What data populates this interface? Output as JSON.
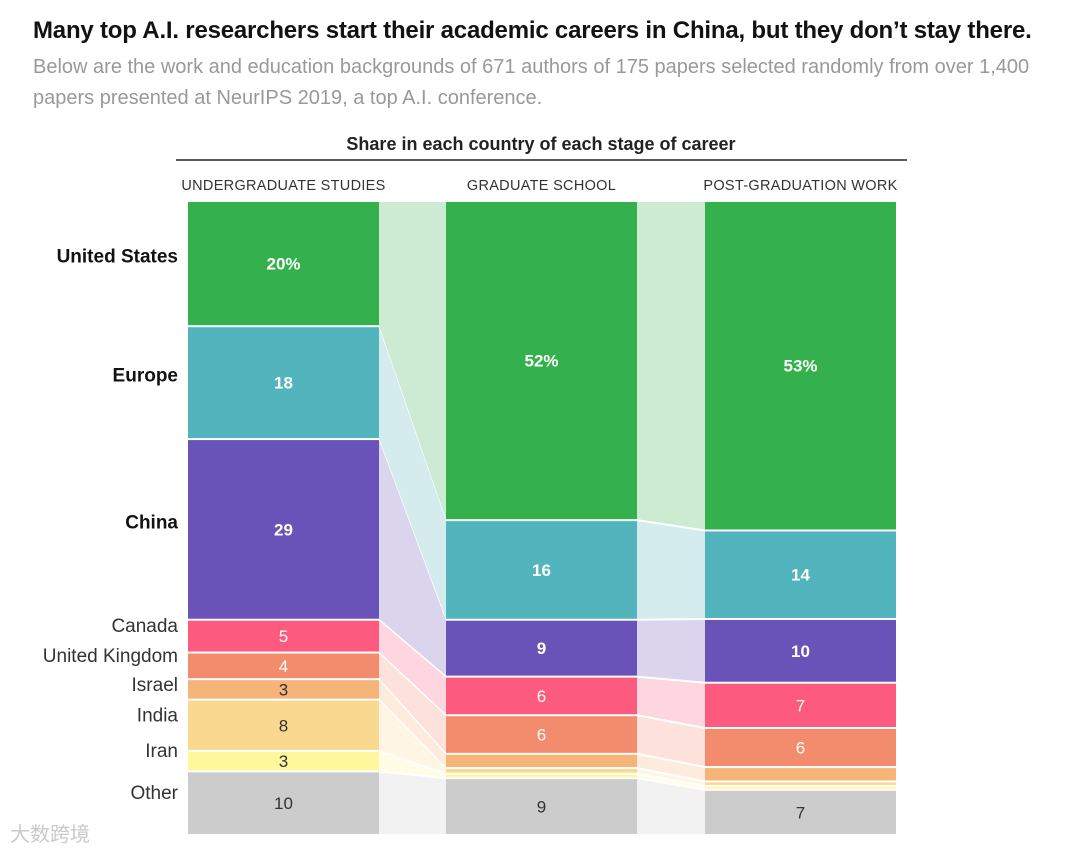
{
  "title": "Many top A.I. researchers start their academic careers in China, but they don’t stay there.",
  "subtitle": "Below are the work and education backgrounds of 671 authors of 175 papers selected randomly from over 1,400 papers presented at NeurIPS 2019, a top A.I. conference.",
  "watermark": "大数跨境",
  "chart_data": {
    "type": "stacked-bar-flow",
    "title": "Share in each country of each stage of career",
    "unit": "%",
    "stages": [
      "UNDERGRADUATE STUDIES",
      "GRADUATE SCHOOL",
      "POST-GRADUATION WORK"
    ],
    "categories": [
      {
        "name": "United States",
        "emphasis": true,
        "color": "#34b04d",
        "text_color": "#ffffff",
        "values": [
          20,
          52,
          53
        ],
        "labels": [
          "20%",
          "52%",
          "53%"
        ]
      },
      {
        "name": "Europe",
        "emphasis": true,
        "color": "#52b4bd",
        "text_color": "#ffffff",
        "values": [
          18,
          16,
          14
        ],
        "labels": [
          "18",
          "16",
          "14"
        ]
      },
      {
        "name": "China",
        "emphasis": true,
        "color": "#6a53b8",
        "text_color": "#ffffff",
        "values": [
          29,
          9,
          10
        ],
        "labels": [
          "29",
          "9",
          "10"
        ]
      },
      {
        "name": "Canada",
        "emphasis": false,
        "color": "#fd5a80",
        "text_color": "#ffffff",
        "values": [
          5,
          6,
          7
        ],
        "labels": [
          "5",
          "6",
          "7"
        ]
      },
      {
        "name": "United Kingdom",
        "emphasis": false,
        "color": "#f28c6c",
        "text_color": "#ffffff",
        "values": [
          4,
          6,
          6
        ],
        "labels": [
          "4",
          "6",
          "6"
        ]
      },
      {
        "name": "Israel",
        "emphasis": false,
        "color": "#f6b479",
        "text_color": "#333333",
        "values": [
          3,
          2,
          2
        ],
        "labels": [
          "3",
          "",
          ""
        ]
      },
      {
        "name": "India",
        "emphasis": false,
        "color": "#fad88f",
        "text_color": "#333333",
        "values": [
          8,
          0.6,
          0.4
        ],
        "labels": [
          "8",
          "",
          ""
        ]
      },
      {
        "name": "Iran",
        "emphasis": false,
        "color": "#fff79c",
        "text_color": "#333333",
        "values": [
          3,
          0.4,
          0.3
        ],
        "labels": [
          "3",
          "",
          ""
        ]
      },
      {
        "name": "Other",
        "emphasis": false,
        "color": "#cccccc",
        "text_color": "#333333",
        "values": [
          10,
          9,
          7
        ],
        "labels": [
          "10",
          "9",
          "7"
        ]
      }
    ]
  }
}
